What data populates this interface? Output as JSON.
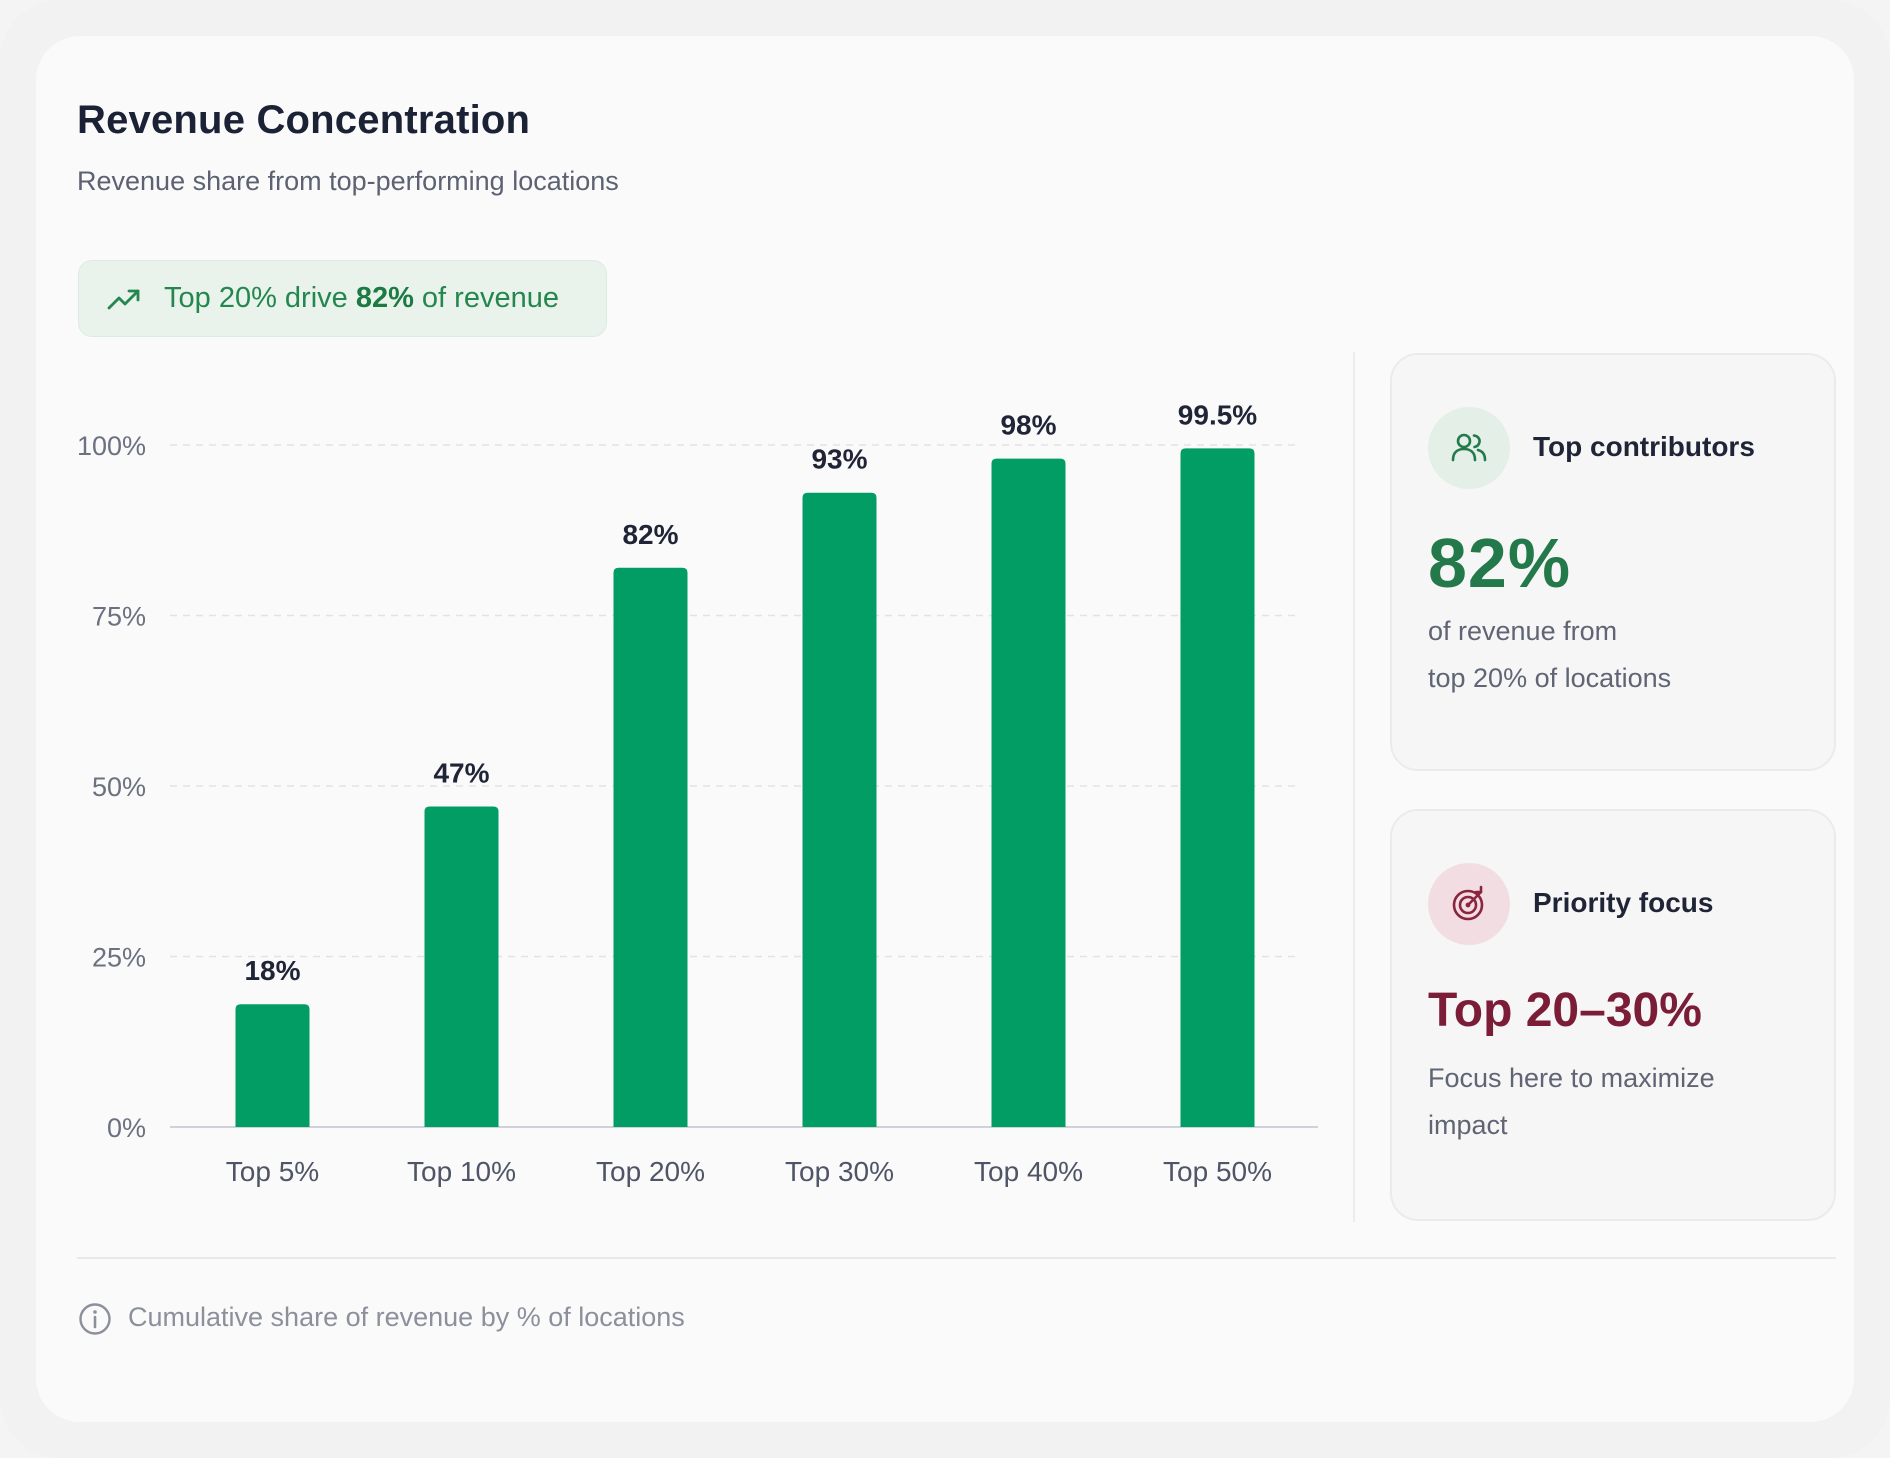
{
  "header": {
    "title": "Revenue Concentration",
    "subtitle": "Revenue share from top-performing locations"
  },
  "highlight": {
    "icon": "trending-up-icon",
    "prefix": "Top 20% drive ",
    "value": "82%",
    "suffix": " of revenue"
  },
  "chart_data": {
    "type": "bar",
    "categories": [
      "Top 5%",
      "Top 10%",
      "Top 20%",
      "Top 30%",
      "Top 40%",
      "Top 50%"
    ],
    "values": [
      18,
      47,
      82,
      93,
      98,
      99.5
    ],
    "data_labels": [
      "18%",
      "47%",
      "82%",
      "93%",
      "98%",
      "99.5%"
    ],
    "yticks": [
      "0%",
      "25%",
      "50%",
      "75%",
      "100%"
    ],
    "ylim": [
      0,
      100
    ],
    "grid": true,
    "legend": "none",
    "bar_color": "#029d65",
    "title": "",
    "xlabel": "",
    "ylabel": ""
  },
  "cards": {
    "contributors": {
      "icon": "users-icon",
      "heading": "Top contributors",
      "value": "82%",
      "line1": "of revenue from",
      "line2": "top 20% of locations",
      "accent": "#23794a"
    },
    "priority": {
      "icon": "target-icon",
      "heading": "Priority focus",
      "value": "Top 20–30%",
      "line1": "Focus here to maximize",
      "line2": "impact",
      "accent": "#7b1d36"
    }
  },
  "footer": {
    "icon": "info-icon",
    "text": "Cumulative share of revenue by % of locations"
  }
}
